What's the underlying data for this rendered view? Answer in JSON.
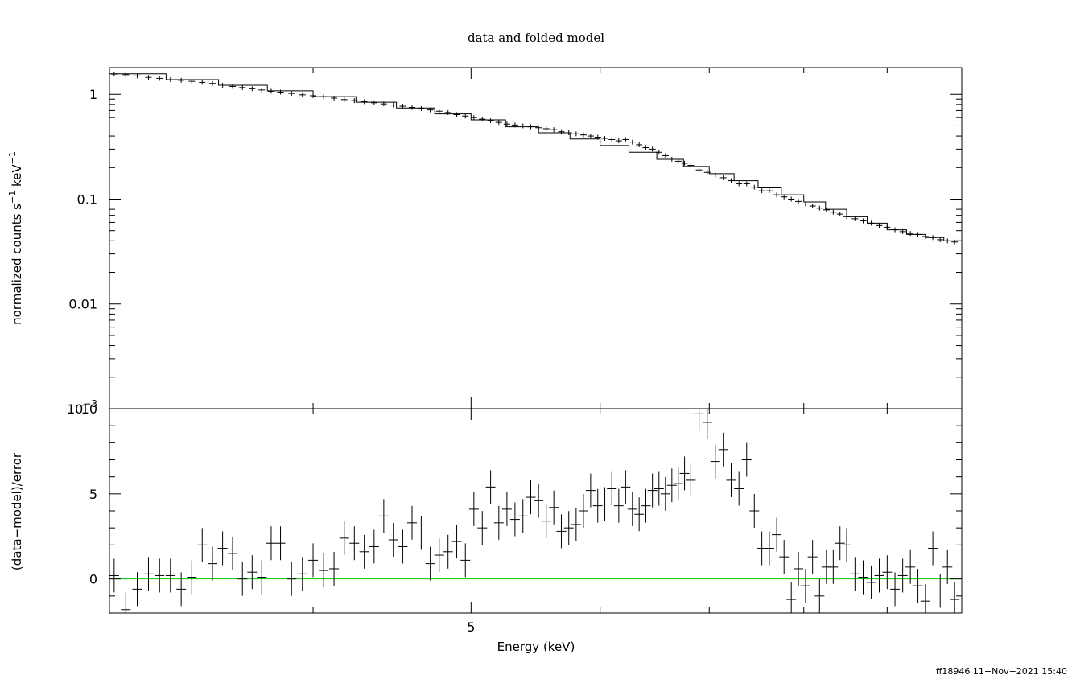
{
  "chart_data": [
    {
      "type": "scatter",
      "title": "data and folded model",
      "ylabel": "normalized counts s",
      "ylabel_sup1": "−1",
      "ylabel_unit": " keV",
      "ylabel_sup2": "−1",
      "yscale": "log",
      "ylim": [
        0.001,
        1.8
      ],
      "xscale": "log",
      "xlim": [
        3.0,
        10.0
      ],
      "y_tick_labels": [
        {
          "label": "1",
          "value": 1
        },
        {
          "label": "0.1",
          "value": 0.1
        },
        {
          "label": "0.01",
          "value": 0.01
        },
        {
          "label": "10",
          "sup": "−3",
          "value": 0.001
        }
      ],
      "series": [
        {
          "role": "data",
          "values": [
            [
              3.02,
              1.56
            ],
            [
              3.07,
              1.54
            ],
            [
              3.12,
              1.5
            ],
            [
              3.17,
              1.45
            ],
            [
              3.22,
              1.42
            ],
            [
              3.27,
              1.38
            ],
            [
              3.32,
              1.36
            ],
            [
              3.37,
              1.33
            ],
            [
              3.42,
              1.3
            ],
            [
              3.47,
              1.27
            ],
            [
              3.52,
              1.22
            ],
            [
              3.57,
              1.19
            ],
            [
              3.62,
              1.16
            ],
            [
              3.67,
              1.13
            ],
            [
              3.72,
              1.1
            ],
            [
              3.77,
              1.07
            ],
            [
              3.82,
              1.05
            ],
            [
              3.88,
              1.02
            ],
            [
              3.94,
              0.99
            ],
            [
              4.0,
              0.97
            ],
            [
              4.06,
              0.95
            ],
            [
              4.12,
              0.92
            ],
            [
              4.18,
              0.89
            ],
            [
              4.24,
              0.87
            ],
            [
              4.3,
              0.85
            ],
            [
              4.36,
              0.83
            ],
            [
              4.42,
              0.81
            ],
            [
              4.48,
              0.79
            ],
            [
              4.54,
              0.77
            ],
            [
              4.6,
              0.75
            ],
            [
              4.66,
              0.73
            ],
            [
              4.72,
              0.71
            ],
            [
              4.78,
              0.69
            ],
            [
              4.84,
              0.67
            ],
            [
              4.9,
              0.64
            ],
            [
              4.96,
              0.62
            ],
            [
              5.02,
              0.6
            ],
            [
              5.08,
              0.58
            ],
            [
              5.14,
              0.56
            ],
            [
              5.2,
              0.54
            ],
            [
              5.26,
              0.52
            ],
            [
              5.32,
              0.51
            ],
            [
              5.38,
              0.5
            ],
            [
              5.44,
              0.49
            ],
            [
              5.5,
              0.48
            ],
            [
              5.56,
              0.47
            ],
            [
              5.62,
              0.46
            ],
            [
              5.68,
              0.44
            ],
            [
              5.74,
              0.43
            ],
            [
              5.8,
              0.42
            ],
            [
              5.86,
              0.41
            ],
            [
              5.92,
              0.4
            ],
            [
              5.98,
              0.39
            ],
            [
              6.04,
              0.38
            ],
            [
              6.1,
              0.37
            ],
            [
              6.16,
              0.36
            ],
            [
              6.22,
              0.37
            ],
            [
              6.28,
              0.35
            ],
            [
              6.34,
              0.33
            ],
            [
              6.4,
              0.31
            ],
            [
              6.46,
              0.3
            ],
            [
              6.52,
              0.28
            ],
            [
              6.58,
              0.26
            ],
            [
              6.64,
              0.24
            ],
            [
              6.7,
              0.23
            ],
            [
              6.76,
              0.22
            ],
            [
              6.82,
              0.21
            ],
            [
              6.9,
              0.19
            ],
            [
              6.98,
              0.18
            ],
            [
              7.06,
              0.17
            ],
            [
              7.14,
              0.16
            ],
            [
              7.22,
              0.15
            ],
            [
              7.3,
              0.14
            ],
            [
              7.38,
              0.14
            ],
            [
              7.46,
              0.13
            ],
            [
              7.54,
              0.12
            ],
            [
              7.62,
              0.12
            ],
            [
              7.7,
              0.11
            ],
            [
              7.78,
              0.105
            ],
            [
              7.86,
              0.1
            ],
            [
              7.94,
              0.095
            ],
            [
              8.02,
              0.09
            ],
            [
              8.1,
              0.086
            ],
            [
              8.18,
              0.082
            ],
            [
              8.26,
              0.079
            ],
            [
              8.34,
              0.075
            ],
            [
              8.42,
              0.072
            ],
            [
              8.5,
              0.068
            ],
            [
              8.6,
              0.065
            ],
            [
              8.7,
              0.062
            ],
            [
              8.8,
              0.059
            ],
            [
              8.9,
              0.056
            ],
            [
              9.0,
              0.054
            ],
            [
              9.1,
              0.051
            ],
            [
              9.2,
              0.049
            ],
            [
              9.3,
              0.047
            ],
            [
              9.4,
              0.046
            ],
            [
              9.5,
              0.044
            ],
            [
              9.6,
              0.043
            ],
            [
              9.7,
              0.041
            ],
            [
              9.8,
              0.04
            ],
            [
              9.9,
              0.039
            ]
          ]
        },
        {
          "role": "model",
          "values": [
            [
              3.0,
              1.57
            ],
            [
              3.25,
              1.38
            ],
            [
              3.5,
              1.22
            ],
            [
              3.75,
              1.08
            ],
            [
              4.0,
              0.95
            ],
            [
              4.25,
              0.84
            ],
            [
              4.5,
              0.74
            ],
            [
              4.75,
              0.65
            ],
            [
              5.0,
              0.57
            ],
            [
              5.25,
              0.49
            ],
            [
              5.5,
              0.43
            ],
            [
              5.75,
              0.375
            ],
            [
              6.0,
              0.325
            ],
            [
              6.25,
              0.28
            ],
            [
              6.5,
              0.24
            ],
            [
              6.75,
              0.205
            ],
            [
              7.0,
              0.175
            ],
            [
              7.25,
              0.15
            ],
            [
              7.5,
              0.128
            ],
            [
              7.75,
              0.11
            ],
            [
              8.0,
              0.094
            ],
            [
              8.25,
              0.08
            ],
            [
              8.5,
              0.068
            ],
            [
              8.75,
              0.059
            ],
            [
              9.0,
              0.051
            ],
            [
              9.25,
              0.046
            ],
            [
              9.5,
              0.043
            ],
            [
              9.75,
              0.04
            ],
            [
              10.0,
              0.038
            ]
          ]
        }
      ]
    },
    {
      "type": "scatter",
      "xlabel": "Energy (keV)",
      "ylabel": "(data−model)/error",
      "xscale": "log",
      "xlim": [
        3.0,
        10.0
      ],
      "ylim": [
        -2.0,
        10.0
      ],
      "x_tick_labels": [
        {
          "label": "5",
          "value": 5
        }
      ],
      "y_tick_labels": [
        {
          "label": "10",
          "value": 10
        },
        {
          "label": "5",
          "value": 5
        },
        {
          "label": "0",
          "value": 0
        }
      ],
      "zero_line_color": "#00c800",
      "series": [
        {
          "role": "residuals",
          "values": [
            [
              3.02,
              0.2
            ],
            [
              3.07,
              -1.8
            ],
            [
              3.12,
              -0.6
            ],
            [
              3.17,
              0.3
            ],
            [
              3.22,
              0.2
            ],
            [
              3.27,
              0.2
            ],
            [
              3.32,
              -0.6
            ],
            [
              3.37,
              0.1
            ],
            [
              3.42,
              2.0
            ],
            [
              3.47,
              0.9
            ],
            [
              3.52,
              1.8
            ],
            [
              3.57,
              1.5
            ],
            [
              3.62,
              0.0
            ],
            [
              3.67,
              0.4
            ],
            [
              3.72,
              0.1
            ],
            [
              3.77,
              2.1
            ],
            [
              3.82,
              2.1
            ],
            [
              3.88,
              0.0
            ],
            [
              3.94,
              0.3
            ],
            [
              4.0,
              1.1
            ],
            [
              4.06,
              0.5
            ],
            [
              4.12,
              0.6
            ],
            [
              4.18,
              2.4
            ],
            [
              4.24,
              2.1
            ],
            [
              4.3,
              1.6
            ],
            [
              4.36,
              1.9
            ],
            [
              4.42,
              3.7
            ],
            [
              4.48,
              2.3
            ],
            [
              4.54,
              1.9
            ],
            [
              4.6,
              3.3
            ],
            [
              4.66,
              2.7
            ],
            [
              4.72,
              0.9
            ],
            [
              4.78,
              1.4
            ],
            [
              4.84,
              1.6
            ],
            [
              4.9,
              2.2
            ],
            [
              4.96,
              1.1
            ],
            [
              5.02,
              4.1
            ],
            [
              5.08,
              3.0
            ],
            [
              5.14,
              5.4
            ],
            [
              5.2,
              3.3
            ],
            [
              5.26,
              4.1
            ],
            [
              5.32,
              3.5
            ],
            [
              5.38,
              3.7
            ],
            [
              5.44,
              4.8
            ],
            [
              5.5,
              4.6
            ],
            [
              5.56,
              3.4
            ],
            [
              5.62,
              4.2
            ],
            [
              5.68,
              2.8
            ],
            [
              5.74,
              3.0
            ],
            [
              5.8,
              3.2
            ],
            [
              5.86,
              4.0
            ],
            [
              5.92,
              5.2
            ],
            [
              5.98,
              4.3
            ],
            [
              6.04,
              4.4
            ],
            [
              6.1,
              5.3
            ],
            [
              6.16,
              4.3
            ],
            [
              6.22,
              5.4
            ],
            [
              6.28,
              4.1
            ],
            [
              6.34,
              3.8
            ],
            [
              6.4,
              4.3
            ],
            [
              6.46,
              5.2
            ],
            [
              6.52,
              5.3
            ],
            [
              6.58,
              5.0
            ],
            [
              6.64,
              5.5
            ],
            [
              6.7,
              5.6
            ],
            [
              6.76,
              6.2
            ],
            [
              6.82,
              5.8
            ],
            [
              6.9,
              9.7
            ],
            [
              6.98,
              9.2
            ],
            [
              7.06,
              6.9
            ],
            [
              7.14,
              7.6
            ],
            [
              7.22,
              5.8
            ],
            [
              7.3,
              5.3
            ],
            [
              7.38,
              7.0
            ],
            [
              7.46,
              4.0
            ],
            [
              7.54,
              1.8
            ],
            [
              7.62,
              1.8
            ],
            [
              7.7,
              2.6
            ],
            [
              7.78,
              1.3
            ],
            [
              7.86,
              -1.2
            ],
            [
              7.94,
              0.6
            ],
            [
              8.02,
              -0.4
            ],
            [
              8.1,
              1.3
            ],
            [
              8.18,
              -1.0
            ],
            [
              8.26,
              0.7
            ],
            [
              8.34,
              0.7
            ],
            [
              8.42,
              2.1
            ],
            [
              8.5,
              2.0
            ],
            [
              8.6,
              0.3
            ],
            [
              8.7,
              0.1
            ],
            [
              8.8,
              -0.2
            ],
            [
              8.9,
              0.2
            ],
            [
              9.0,
              0.4
            ],
            [
              9.1,
              -0.6
            ],
            [
              9.2,
              0.2
            ],
            [
              9.3,
              0.7
            ],
            [
              9.4,
              -0.4
            ],
            [
              9.5,
              -1.3
            ],
            [
              9.6,
              1.8
            ],
            [
              9.7,
              -0.7
            ],
            [
              9.8,
              0.7
            ],
            [
              9.9,
              -1.2
            ]
          ]
        }
      ]
    }
  ],
  "footer": "ff18946 11−Nov−2021 15:40"
}
